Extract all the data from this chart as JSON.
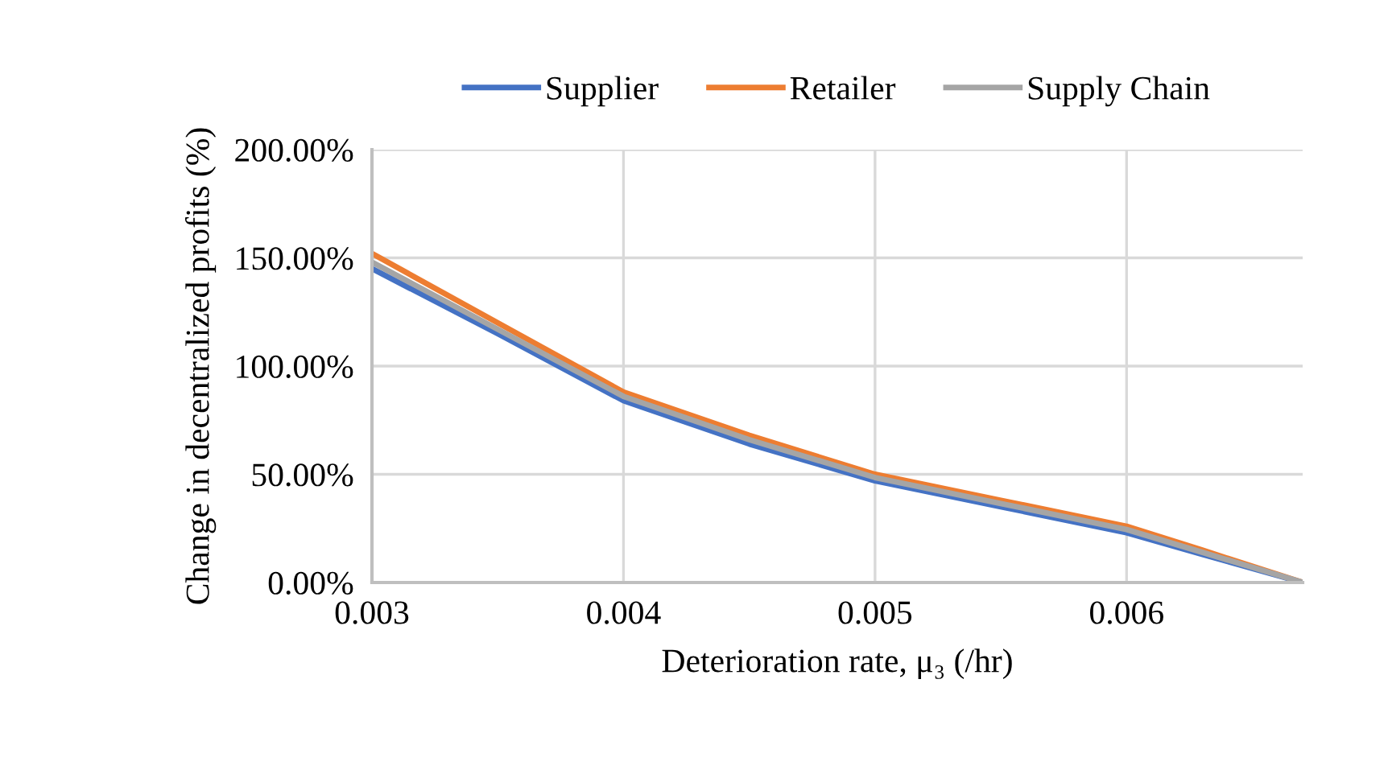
{
  "chart_data": {
    "type": "line",
    "xlabel": "Deterioration rate, μ₃ (/hr)",
    "ylabel": "Change in decentralized profits (%)",
    "x": [
      0.003,
      0.0035,
      0.004,
      0.0045,
      0.005,
      0.0055,
      0.006,
      0.0063,
      0.0067
    ],
    "series": [
      {
        "name": "Supplier",
        "color": "#4472c4",
        "values": [
          145,
          115,
          84,
          64,
          47,
          35,
          23,
          13,
          0
        ]
      },
      {
        "name": "Retailer",
        "color": "#ed7d31",
        "values": [
          152,
          120,
          88,
          68,
          50,
          38,
          26,
          15,
          0
        ]
      },
      {
        "name": "Supply Chain",
        "color": "#a5a5a5",
        "values": [
          148,
          117,
          86,
          66,
          48.5,
          36.5,
          24.5,
          14,
          0
        ]
      }
    ],
    "xlim": [
      0.003,
      0.0067
    ],
    "xticks": [
      0.003,
      0.004,
      0.005,
      0.006
    ],
    "ylim": [
      0,
      200
    ],
    "yticks": [
      {
        "value": 0,
        "label": "0.00%"
      },
      {
        "value": 50,
        "label": "50.00%"
      },
      {
        "value": 100,
        "label": "100.00%"
      },
      {
        "value": 150,
        "label": "150.00%"
      },
      {
        "value": 200,
        "label": "200.00%"
      }
    ],
    "grid": true,
    "legend": "top",
    "marker": "none",
    "line_style": "solid"
  }
}
